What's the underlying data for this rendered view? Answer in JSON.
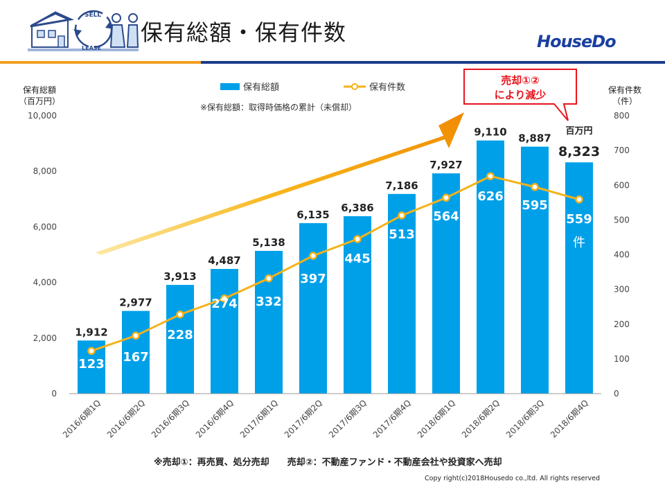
{
  "page": {
    "title": "保有総額・保有件数",
    "brand": "HouseDo",
    "footnote": "※売却①：再売買、処分売却　　売却②：不動産ファンド・不動産会社や投資家へ売却",
    "copyright": "Copy right(c)2018Housedo co.,ltd. All rights reserved",
    "illustration_labels": {
      "sell": "SELL",
      "lease": "LEASE"
    }
  },
  "chart_data": {
    "type": "bar",
    "categories": [
      "2016/6期1Q",
      "2016/6期2Q",
      "2016/6期3Q",
      "2016/6期4Q",
      "2017/6期1Q",
      "2017/6期2Q",
      "2017/6期3Q",
      "2017/6期4Q",
      "2018/6期1Q",
      "2018/6期2Q",
      "2018/6期3Q",
      "2018/6期4Q"
    ],
    "series": [
      {
        "name": "保有総額",
        "type": "bar",
        "axis": "left",
        "color": "#00a0e9",
        "values": [
          1912,
          2977,
          3913,
          4487,
          5138,
          6135,
          6386,
          7186,
          7927,
          9110,
          8887,
          8323
        ],
        "labels": [
          "1,912",
          "2,977",
          "3,913",
          "4,487",
          "5,138",
          "6,135",
          "6,386",
          "7,186",
          "7,927",
          "9,110",
          "8,887",
          "8,323"
        ]
      },
      {
        "name": "保有件数",
        "type": "line",
        "axis": "right",
        "color": "#f5b21a",
        "values": [
          123,
          167,
          228,
          274,
          332,
          397,
          445,
          513,
          564,
          626,
          595,
          559
        ],
        "labels": [
          "123",
          "167",
          "228",
          "274",
          "332",
          "397",
          "445",
          "513",
          "564",
          "626",
          "595",
          "559"
        ]
      }
    ],
    "left_axis": {
      "label_line1": "保有総額",
      "label_line2": "（百万円）",
      "range": [
        0,
        10000
      ],
      "ticks": [
        "0",
        "2,000",
        "4,000",
        "6,000",
        "8,000",
        "10,000"
      ]
    },
    "right_axis": {
      "label_line1": "保有件数",
      "label_line2": "（件）",
      "range": [
        0,
        800
      ],
      "ticks": [
        "0",
        "100",
        "200",
        "300",
        "400",
        "500",
        "600",
        "700",
        "800"
      ]
    },
    "subtitle": "※保有総額：取得時価格の累計（未償却）",
    "unit_last_bar": "百万円",
    "unit_last_point": "件",
    "callout": {
      "line1": "売却①②",
      "line2": "により減少",
      "color": "#e8141c"
    },
    "legend_position": "top-center",
    "grid": false
  }
}
